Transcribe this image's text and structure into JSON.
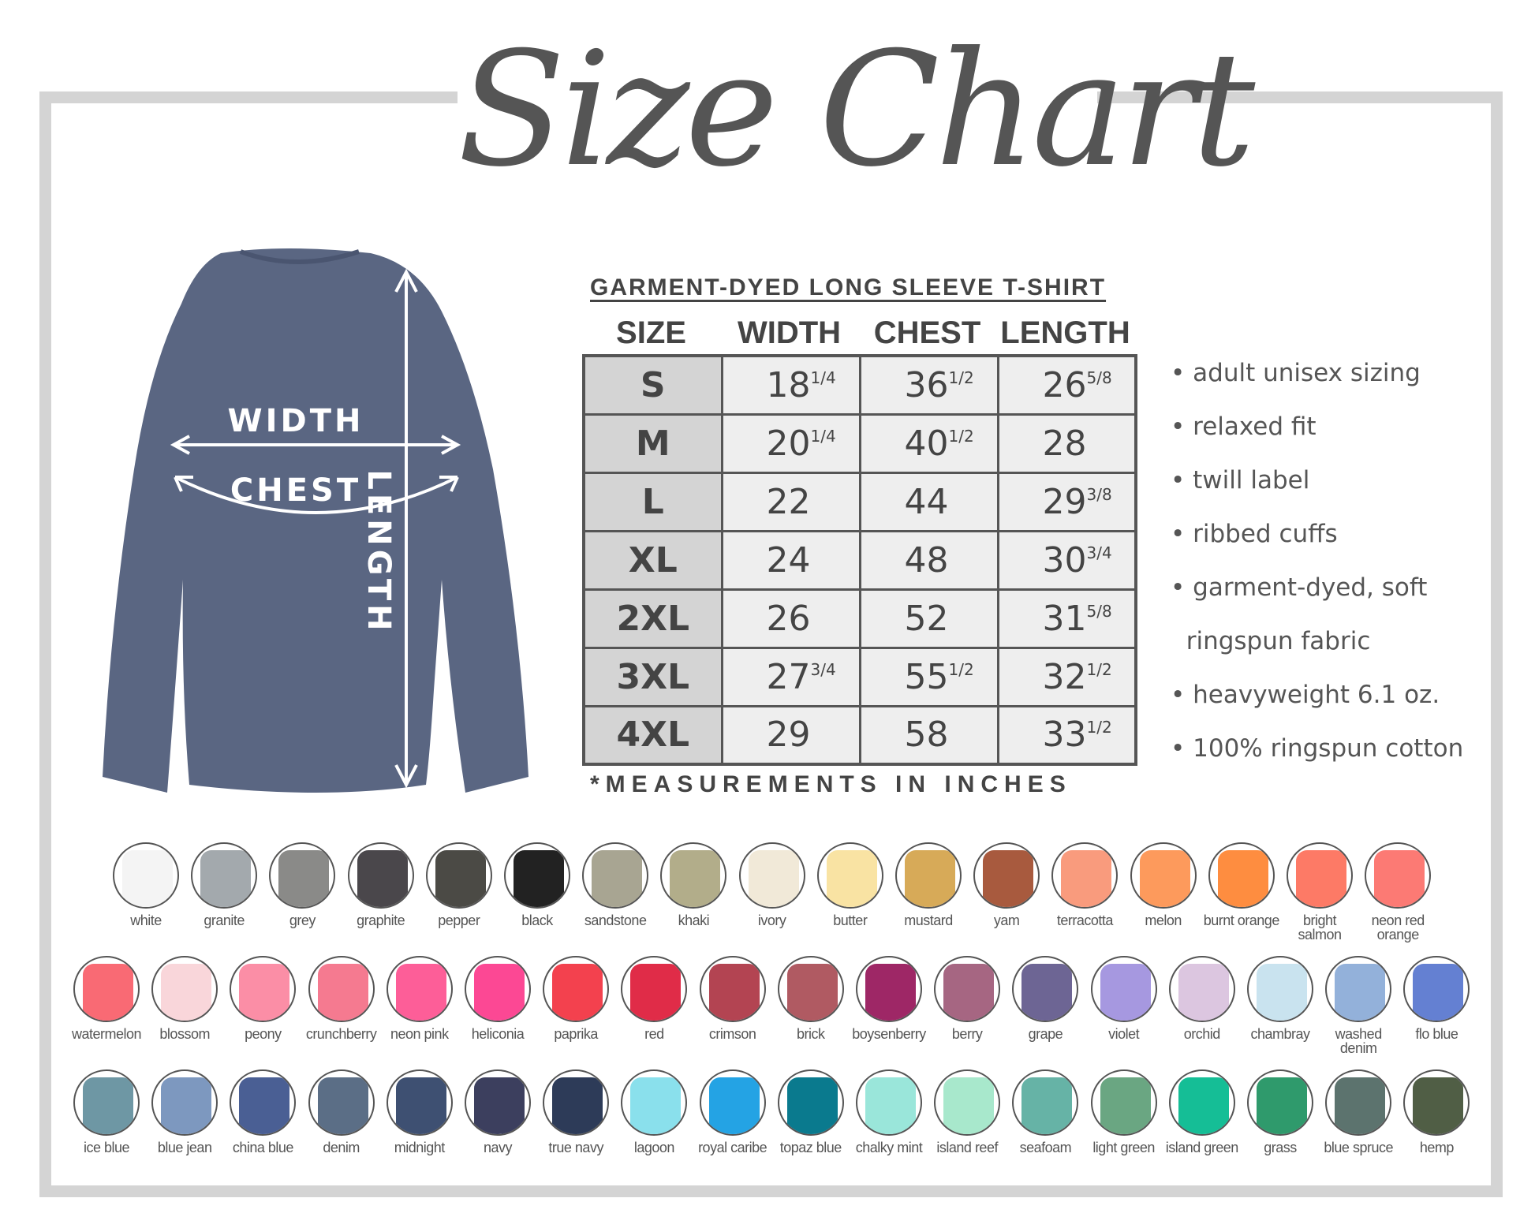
{
  "title": "Size Chart",
  "shirt": {
    "color": "#5a6682",
    "labels": {
      "width": "WIDTH",
      "chest": "CHEST",
      "length": "LENGTH"
    }
  },
  "table": {
    "heading": "GARMENT-DYED LONG SLEEVE T-SHIRT",
    "columns": [
      "SIZE",
      "WIDTH",
      "CHEST",
      "LENGTH"
    ],
    "rows": [
      {
        "size": "S",
        "width": [
          "18",
          "1/4"
        ],
        "chest": [
          "36",
          "1/2"
        ],
        "length": [
          "26",
          "5/8"
        ]
      },
      {
        "size": "M",
        "width": [
          "20",
          "1/4"
        ],
        "chest": [
          "40",
          "1/2"
        ],
        "length": [
          "28",
          ""
        ]
      },
      {
        "size": "L",
        "width": [
          "22",
          ""
        ],
        "chest": [
          "44",
          ""
        ],
        "length": [
          "29",
          "3/8"
        ]
      },
      {
        "size": "XL",
        "width": [
          "24",
          ""
        ],
        "chest": [
          "48",
          ""
        ],
        "length": [
          "30",
          "3/4"
        ]
      },
      {
        "size": "2XL",
        "width": [
          "26",
          ""
        ],
        "chest": [
          "52",
          ""
        ],
        "length": [
          "31",
          "5/8"
        ]
      },
      {
        "size": "3XL",
        "width": [
          "27",
          "3/4"
        ],
        "chest": [
          "55",
          "1/2"
        ],
        "length": [
          "32",
          "1/2"
        ]
      },
      {
        "size": "4XL",
        "width": [
          "29",
          ""
        ],
        "chest": [
          "58",
          ""
        ],
        "length": [
          "33",
          "1/2"
        ]
      }
    ],
    "note": "*MEASUREMENTS IN INCHES"
  },
  "features": [
    "• adult unisex sizing",
    "• relaxed fit",
    "• twill label",
    "• ribbed cuffs",
    "• garment-dyed, soft",
    "  ringspun fabric",
    "• heavyweight 6.1 oz.",
    "• 100% ringspun cotton"
  ],
  "colors": [
    [
      [
        "white",
        "#f4f4f4"
      ],
      [
        "granite",
        "#a3a9ad"
      ],
      [
        "grey",
        "#8a8a88"
      ],
      [
        "graphite",
        "#4a474b"
      ],
      [
        "pepper",
        "#4b4a45"
      ],
      [
        "black",
        "#222222"
      ],
      [
        "sandstone",
        "#a8a592"
      ],
      [
        "khaki",
        "#b2ad8a"
      ],
      [
        "ivory",
        "#f1e9d8"
      ],
      [
        "butter",
        "#f9e3a3"
      ],
      [
        "mustard",
        "#d7aa58"
      ],
      [
        "yam",
        "#a85a3e"
      ],
      [
        "terracotta",
        "#f99b7d"
      ],
      [
        "melon",
        "#fd9a5c"
      ],
      [
        "burnt orange",
        "#fe8d40"
      ],
      [
        "bright salmon",
        "#fd7a66"
      ],
      [
        "neon red orange",
        "#fc7a74"
      ]
    ],
    [
      [
        "watermelon",
        "#f96a74"
      ],
      [
        "blossom",
        "#f9d6da"
      ],
      [
        "peony",
        "#fb8ea6"
      ],
      [
        "crunchberry",
        "#f57a90"
      ],
      [
        "neon pink",
        "#fd5e98"
      ],
      [
        "heliconia",
        "#fc4894"
      ],
      [
        "paprika",
        "#f3414e"
      ],
      [
        "red",
        "#e02c48"
      ],
      [
        "crimson",
        "#b34452"
      ],
      [
        "brick",
        "#b05a62"
      ],
      [
        "boysenberry",
        "#9e2766"
      ],
      [
        "berry",
        "#a66682"
      ],
      [
        "grape",
        "#6d6594"
      ],
      [
        "violet",
        "#a698e0"
      ],
      [
        "orchid",
        "#dcc6e0"
      ],
      [
        "chambray",
        "#c9e3ef"
      ],
      [
        "washed denim",
        "#93b1da"
      ],
      [
        "flo blue",
        "#6480d2"
      ]
    ],
    [
      [
        "ice blue",
        "#6e97a4"
      ],
      [
        "blue jean",
        "#7d98bf"
      ],
      [
        "china blue",
        "#4a5f94"
      ],
      [
        "denim",
        "#5b6e86"
      ],
      [
        "midnight",
        "#3e5072"
      ],
      [
        "navy",
        "#3c3f5e"
      ],
      [
        "true navy",
        "#2d3b58"
      ],
      [
        "lagoon",
        "#8ae0ec"
      ],
      [
        "royal caribe",
        "#24a3e4"
      ],
      [
        "topaz blue",
        "#0a7a8e"
      ],
      [
        "chalky mint",
        "#9ae6da"
      ],
      [
        "island reef",
        "#a8e8cc"
      ],
      [
        "seafoam",
        "#66b3a6"
      ],
      [
        "light green",
        "#6aa682"
      ],
      [
        "island green",
        "#15be96"
      ],
      [
        "grass",
        "#2f9a6c"
      ],
      [
        "blue spruce",
        "#5c736e"
      ],
      [
        "hemp",
        "#505e45"
      ]
    ]
  ]
}
